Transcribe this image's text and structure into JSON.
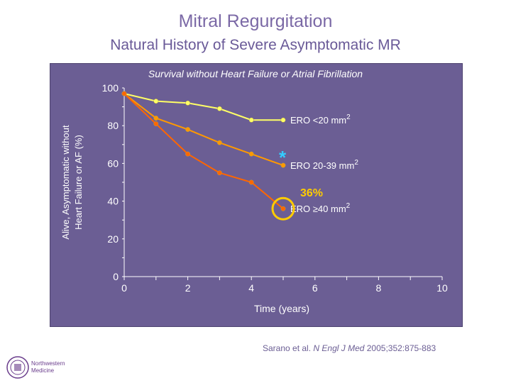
{
  "header": {
    "title": "Mitral Regurgitation",
    "subtitle": "Natural History of Severe Asymptomatic MR"
  },
  "chart_data": {
    "type": "line",
    "title": "Survival without Heart Failure or Atrial Fibrillation",
    "xlabel": "Time (years)",
    "ylabel": "Alive, Asymptomatic without Heart Failure or AF (%)",
    "xlim": [
      0,
      10
    ],
    "ylim": [
      0,
      100
    ],
    "x_ticks": [
      0,
      2,
      4,
      6,
      8,
      10
    ],
    "y_ticks": [
      0,
      20,
      40,
      60,
      80,
      100
    ],
    "series": [
      {
        "name": "ERO <20 mm2",
        "color": "#ffff66",
        "x": [
          0,
          1,
          2,
          3,
          4,
          5
        ],
        "y": [
          97,
          93,
          92,
          89,
          83,
          83
        ]
      },
      {
        "name": "ERO 20-39 mm2",
        "color": "#ff9900",
        "x": [
          0,
          1,
          2,
          3,
          4,
          5
        ],
        "y": [
          97,
          84,
          78,
          71,
          65,
          59
        ]
      },
      {
        "name": "ERO ≥40 mm2",
        "color": "#ff6600",
        "x": [
          0,
          1,
          2,
          3,
          4,
          5
        ],
        "y": [
          97,
          81,
          65,
          55,
          50,
          36
        ]
      }
    ],
    "annotations": [
      {
        "text": "*",
        "color": "#33ccff"
      },
      {
        "text": "36%",
        "color": "#ffcc00"
      }
    ],
    "series_labels": [
      {
        "main": "ERO <20 mm",
        "sup": "2"
      },
      {
        "main": "ERO 20-39 mm",
        "sup": "2"
      },
      {
        "main": "ERO ≥40 mm",
        "sup": "2"
      }
    ]
  },
  "citation": {
    "authors": "Sarano et al. ",
    "journal": "N Engl J Med",
    "details": " 2005;352:875-883"
  },
  "logo": {
    "line1": "Northwestern",
    "line2": "Medicine"
  }
}
